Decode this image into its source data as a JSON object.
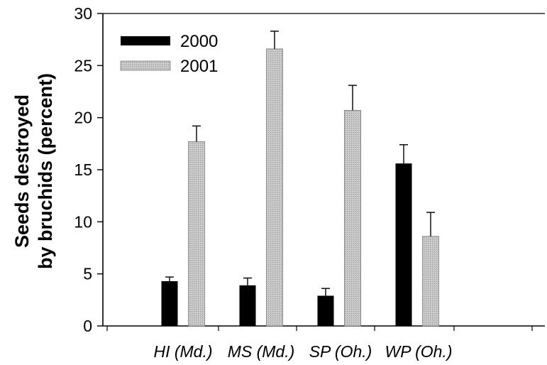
{
  "chart_data": {
    "type": "bar",
    "title": "",
    "xlabel": "",
    "ylabel_lines": [
      "Seeds destroyed",
      "by bruchids (percent)"
    ],
    "ylim": [
      0,
      30
    ],
    "yticks": [
      0,
      5,
      10,
      15,
      20,
      25,
      30
    ],
    "ytick_labels": [
      "0",
      "5",
      "10",
      "15",
      "20",
      "25",
      "30"
    ],
    "categories": [
      "HI (Md.)",
      "MS (Md.)",
      "SP (Oh.)",
      "WP (Oh.)"
    ],
    "series": [
      {
        "name": "2000",
        "color": "#000000",
        "values": [
          4.3,
          3.9,
          2.9,
          15.6
        ],
        "errors": [
          0.4,
          0.7,
          0.7,
          1.8
        ]
      },
      {
        "name": "2001",
        "color": "#bdbdbd",
        "values": [
          17.7,
          26.6,
          20.7,
          8.6
        ],
        "errors": [
          1.5,
          1.7,
          2.4,
          2.3
        ]
      }
    ],
    "legend_position": "top-left",
    "grid": false
  }
}
